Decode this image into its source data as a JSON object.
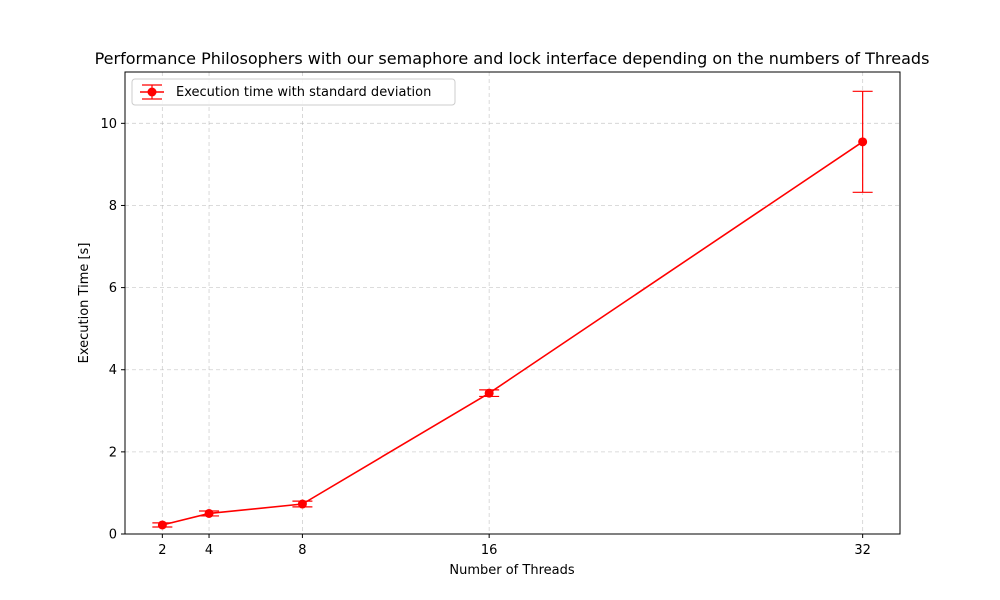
{
  "chart_data": {
    "type": "line",
    "title": "Performance Philosophers with our semaphore and lock interface depending on the numbers of Threads",
    "xlabel": "Number of Threads",
    "ylabel": "Execution Time [s]",
    "xlim": [
      0.4,
      33.6
    ],
    "ylim": [
      0,
      11.25
    ],
    "x_ticks": [
      2,
      4,
      8,
      16,
      32
    ],
    "y_ticks": [
      0,
      2,
      4,
      6,
      8,
      10
    ],
    "grid": true,
    "legend_position": "upper-left",
    "series": [
      {
        "name": "Execution time with standard deviation",
        "color": "#ff0000",
        "marker": "circle",
        "x": [
          2,
          4,
          8,
          16,
          32
        ],
        "y": [
          0.22,
          0.5,
          0.73,
          3.43,
          9.55
        ],
        "yerr": [
          0.05,
          0.06,
          0.07,
          0.08,
          1.23
        ]
      }
    ]
  }
}
